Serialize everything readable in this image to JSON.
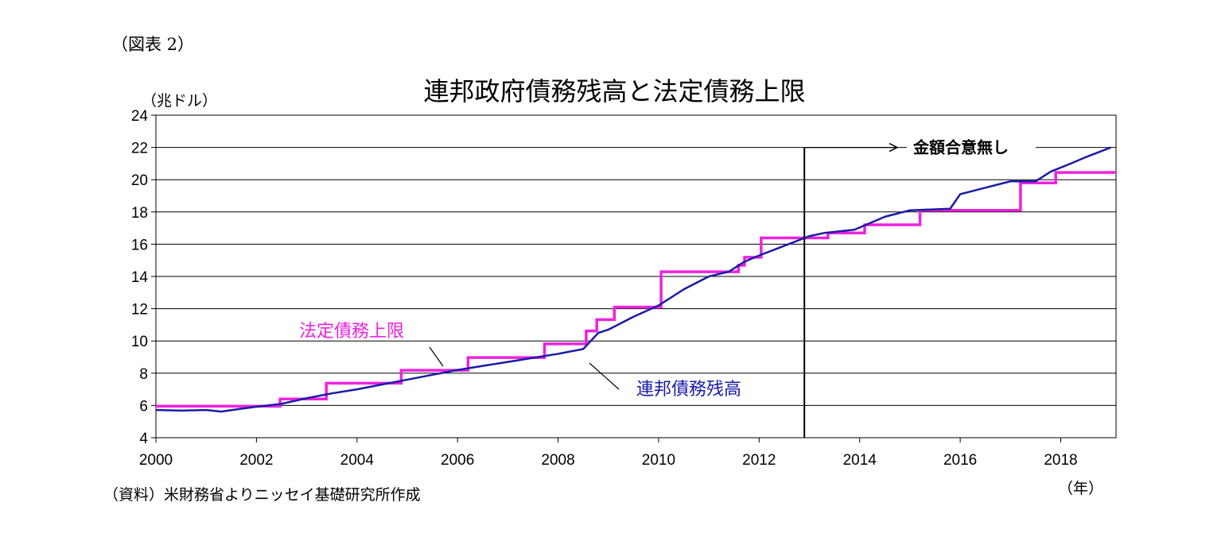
{
  "figure_label": "（図表 2）",
  "y_unit": "（兆ドル）",
  "x_unit": "（年）",
  "source": "（資料）米財務省よりニッセイ基礎研究所作成",
  "colors": {
    "limit": "#ee22dd",
    "debt": "#1a1aaa",
    "grid": "#000000"
  },
  "chart_data": {
    "type": "line",
    "title": "連邦政府債務残高と法定債務上限",
    "xlabel": "（年）",
    "ylabel": "（兆ドル）",
    "xlim": [
      2000,
      2019.1
    ],
    "ylim": [
      4,
      24
    ],
    "x_ticks": [
      "2000",
      "2002",
      "2004",
      "2006",
      "2008",
      "2010",
      "2012",
      "2014",
      "2016",
      "2018"
    ],
    "y_ticks": [
      "4",
      "6",
      "8",
      "10",
      "12",
      "14",
      "16",
      "18",
      "20",
      "22",
      "24"
    ],
    "grid": true,
    "series": [
      {
        "name": "法定債務上限",
        "step": true,
        "points": [
          [
            2000.0,
            5.95
          ],
          [
            2002.47,
            6.4
          ],
          [
            2003.39,
            7.38
          ],
          [
            2004.88,
            8.18
          ],
          [
            2006.21,
            8.97
          ],
          [
            2007.73,
            9.82
          ],
          [
            2008.56,
            10.62
          ],
          [
            2008.77,
            11.32
          ],
          [
            2009.12,
            12.1
          ],
          [
            2010.05,
            14.29
          ],
          [
            2011.59,
            14.69
          ],
          [
            2011.71,
            15.19
          ],
          [
            2012.04,
            16.39
          ],
          [
            2013.37,
            16.7
          ],
          [
            2014.1,
            17.2
          ],
          [
            2015.2,
            18.1
          ],
          [
            2016.3,
            18.1
          ],
          [
            2017.2,
            19.8
          ],
          [
            2017.9,
            20.45
          ],
          [
            2019.1,
            20.45
          ]
        ]
      },
      {
        "name": "連邦債務残高",
        "step": false,
        "points": [
          [
            2000.0,
            5.72
          ],
          [
            2000.5,
            5.68
          ],
          [
            2001.0,
            5.72
          ],
          [
            2001.3,
            5.62
          ],
          [
            2001.7,
            5.8
          ],
          [
            2002.0,
            5.92
          ],
          [
            2002.5,
            6.1
          ],
          [
            2003.0,
            6.45
          ],
          [
            2003.5,
            6.75
          ],
          [
            2004.0,
            7.0
          ],
          [
            2004.5,
            7.3
          ],
          [
            2005.0,
            7.6
          ],
          [
            2005.5,
            7.9
          ],
          [
            2006.0,
            8.2
          ],
          [
            2006.5,
            8.45
          ],
          [
            2007.0,
            8.7
          ],
          [
            2007.5,
            8.95
          ],
          [
            2008.0,
            9.2
          ],
          [
            2008.5,
            9.5
          ],
          [
            2008.8,
            10.5
          ],
          [
            2009.0,
            10.7
          ],
          [
            2009.5,
            11.5
          ],
          [
            2010.0,
            12.2
          ],
          [
            2010.5,
            13.2
          ],
          [
            2011.0,
            14.0
          ],
          [
            2011.4,
            14.3
          ],
          [
            2011.7,
            14.9
          ],
          [
            2012.0,
            15.3
          ],
          [
            2012.5,
            15.9
          ],
          [
            2013.0,
            16.5
          ],
          [
            2013.3,
            16.7
          ],
          [
            2013.9,
            16.9
          ],
          [
            2014.5,
            17.7
          ],
          [
            2015.0,
            18.1
          ],
          [
            2015.8,
            18.2
          ],
          [
            2016.0,
            19.1
          ],
          [
            2016.5,
            19.5
          ],
          [
            2017.0,
            19.9
          ],
          [
            2017.2,
            19.9
          ],
          [
            2017.5,
            19.9
          ],
          [
            2017.8,
            20.5
          ],
          [
            2018.2,
            21.0
          ],
          [
            2018.5,
            21.4
          ],
          [
            2019.0,
            22.0
          ]
        ]
      }
    ],
    "annotations": [
      {
        "text": "法定債務上限",
        "series": "法定債務上限"
      },
      {
        "text": "連邦債務残高",
        "series": "連邦債務残高"
      },
      {
        "text": "金額合意無し",
        "x_start": 2012.9,
        "y_level": 22
      }
    ]
  }
}
